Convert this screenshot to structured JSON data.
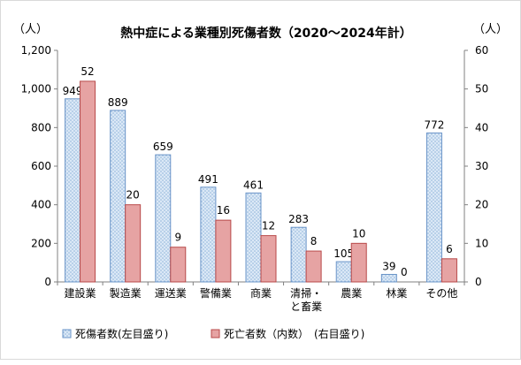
{
  "chart_data": {
    "type": "bar",
    "title": "熱中症による業種別死傷者数（2020～2024年計）",
    "left_unit": "（人）",
    "right_unit": "（人）",
    "categories": [
      "建設業",
      "製造業",
      "運送業",
      "警備業",
      "商業",
      "清掃・\nと畜業",
      "農業",
      "林業",
      "その他"
    ],
    "series": [
      {
        "name": "死傷者数(左目盛り)",
        "axis": "left",
        "values": [
          949,
          889,
          659,
          491,
          461,
          283,
          105,
          39,
          772
        ],
        "pattern": "blue-dotted"
      },
      {
        "name": "死亡者数（内数）　(右目盛り)",
        "axis": "right",
        "values": [
          52,
          20,
          9,
          16,
          12,
          8,
          10,
          0,
          6
        ],
        "pattern": "red-solid"
      }
    ],
    "left_axis": {
      "min": 0,
      "max": 1200,
      "ticks": [
        "0",
        "200",
        "400",
        "600",
        "800",
        "1,000",
        "1,200"
      ]
    },
    "right_axis": {
      "min": 0,
      "max": 60,
      "ticks": [
        "0",
        "10",
        "20",
        "30",
        "40",
        "50",
        "60"
      ]
    },
    "grid": false,
    "legend_position": "bottom-left",
    "colors": {
      "series1_fill": "#dbe8f6",
      "series1_dot": "#8ab0d8",
      "series1_border": "#6a94c8",
      "series2_fill": "#e6a3a3",
      "series2_border": "#b84a4a"
    }
  }
}
